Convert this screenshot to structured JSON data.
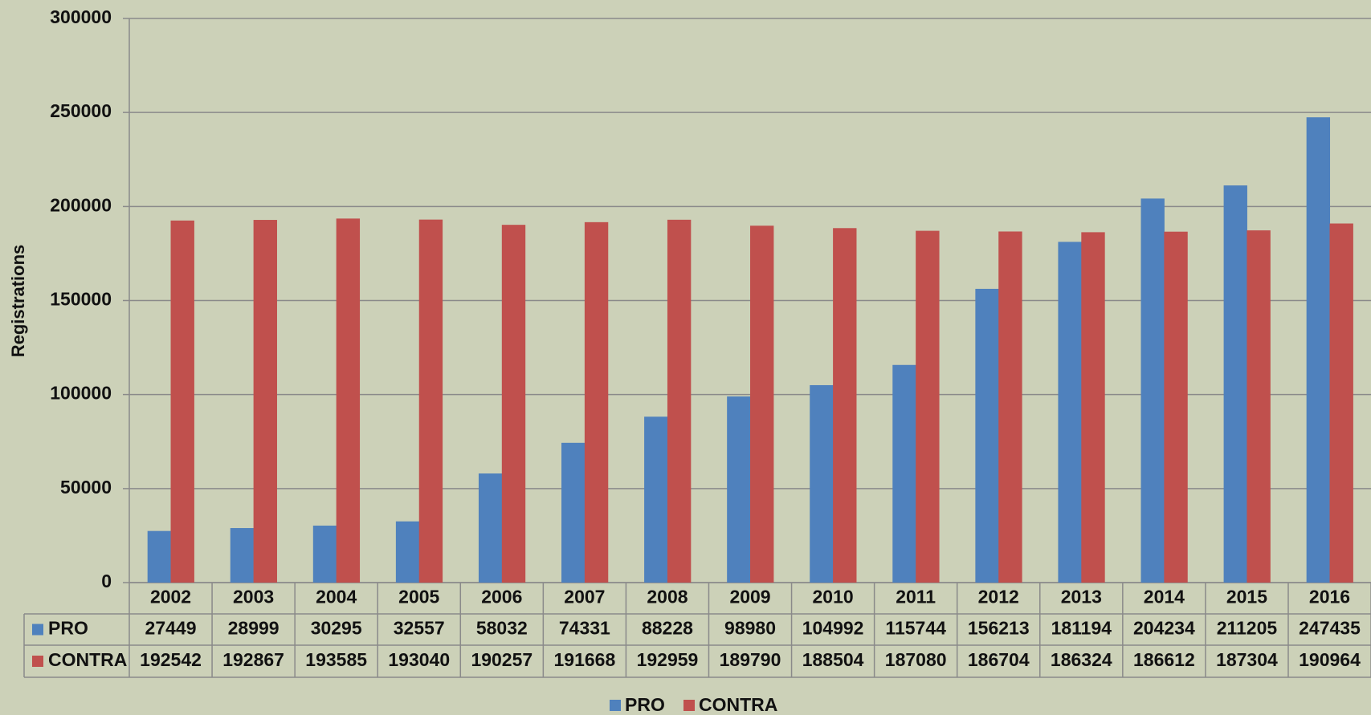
{
  "chart_data": {
    "type": "bar",
    "y_label": "Registrations",
    "categories": [
      "2002",
      "2003",
      "2004",
      "2005",
      "2006",
      "2007",
      "2008",
      "2009",
      "2010",
      "2011",
      "2012",
      "2013",
      "2014",
      "2015",
      "2016"
    ],
    "series": [
      {
        "name": "PRO",
        "color": "#4f81bd",
        "values": [
          27449,
          28999,
          30295,
          32557,
          58032,
          74331,
          88228,
          98980,
          104992,
          115744,
          156213,
          181194,
          204234,
          211205,
          247435
        ]
      },
      {
        "name": "CONTRA",
        "color": "#c0504d",
        "values": [
          192542,
          192867,
          193585,
          193040,
          190257,
          191668,
          192959,
          189790,
          188504,
          187080,
          186704,
          186324,
          186612,
          187304,
          190964
        ]
      }
    ],
    "ylim": [
      0,
      300000
    ],
    "yticks": [
      0,
      50000,
      100000,
      150000,
      200000,
      250000,
      300000
    ],
    "grid": true,
    "legend": "bottom"
  }
}
